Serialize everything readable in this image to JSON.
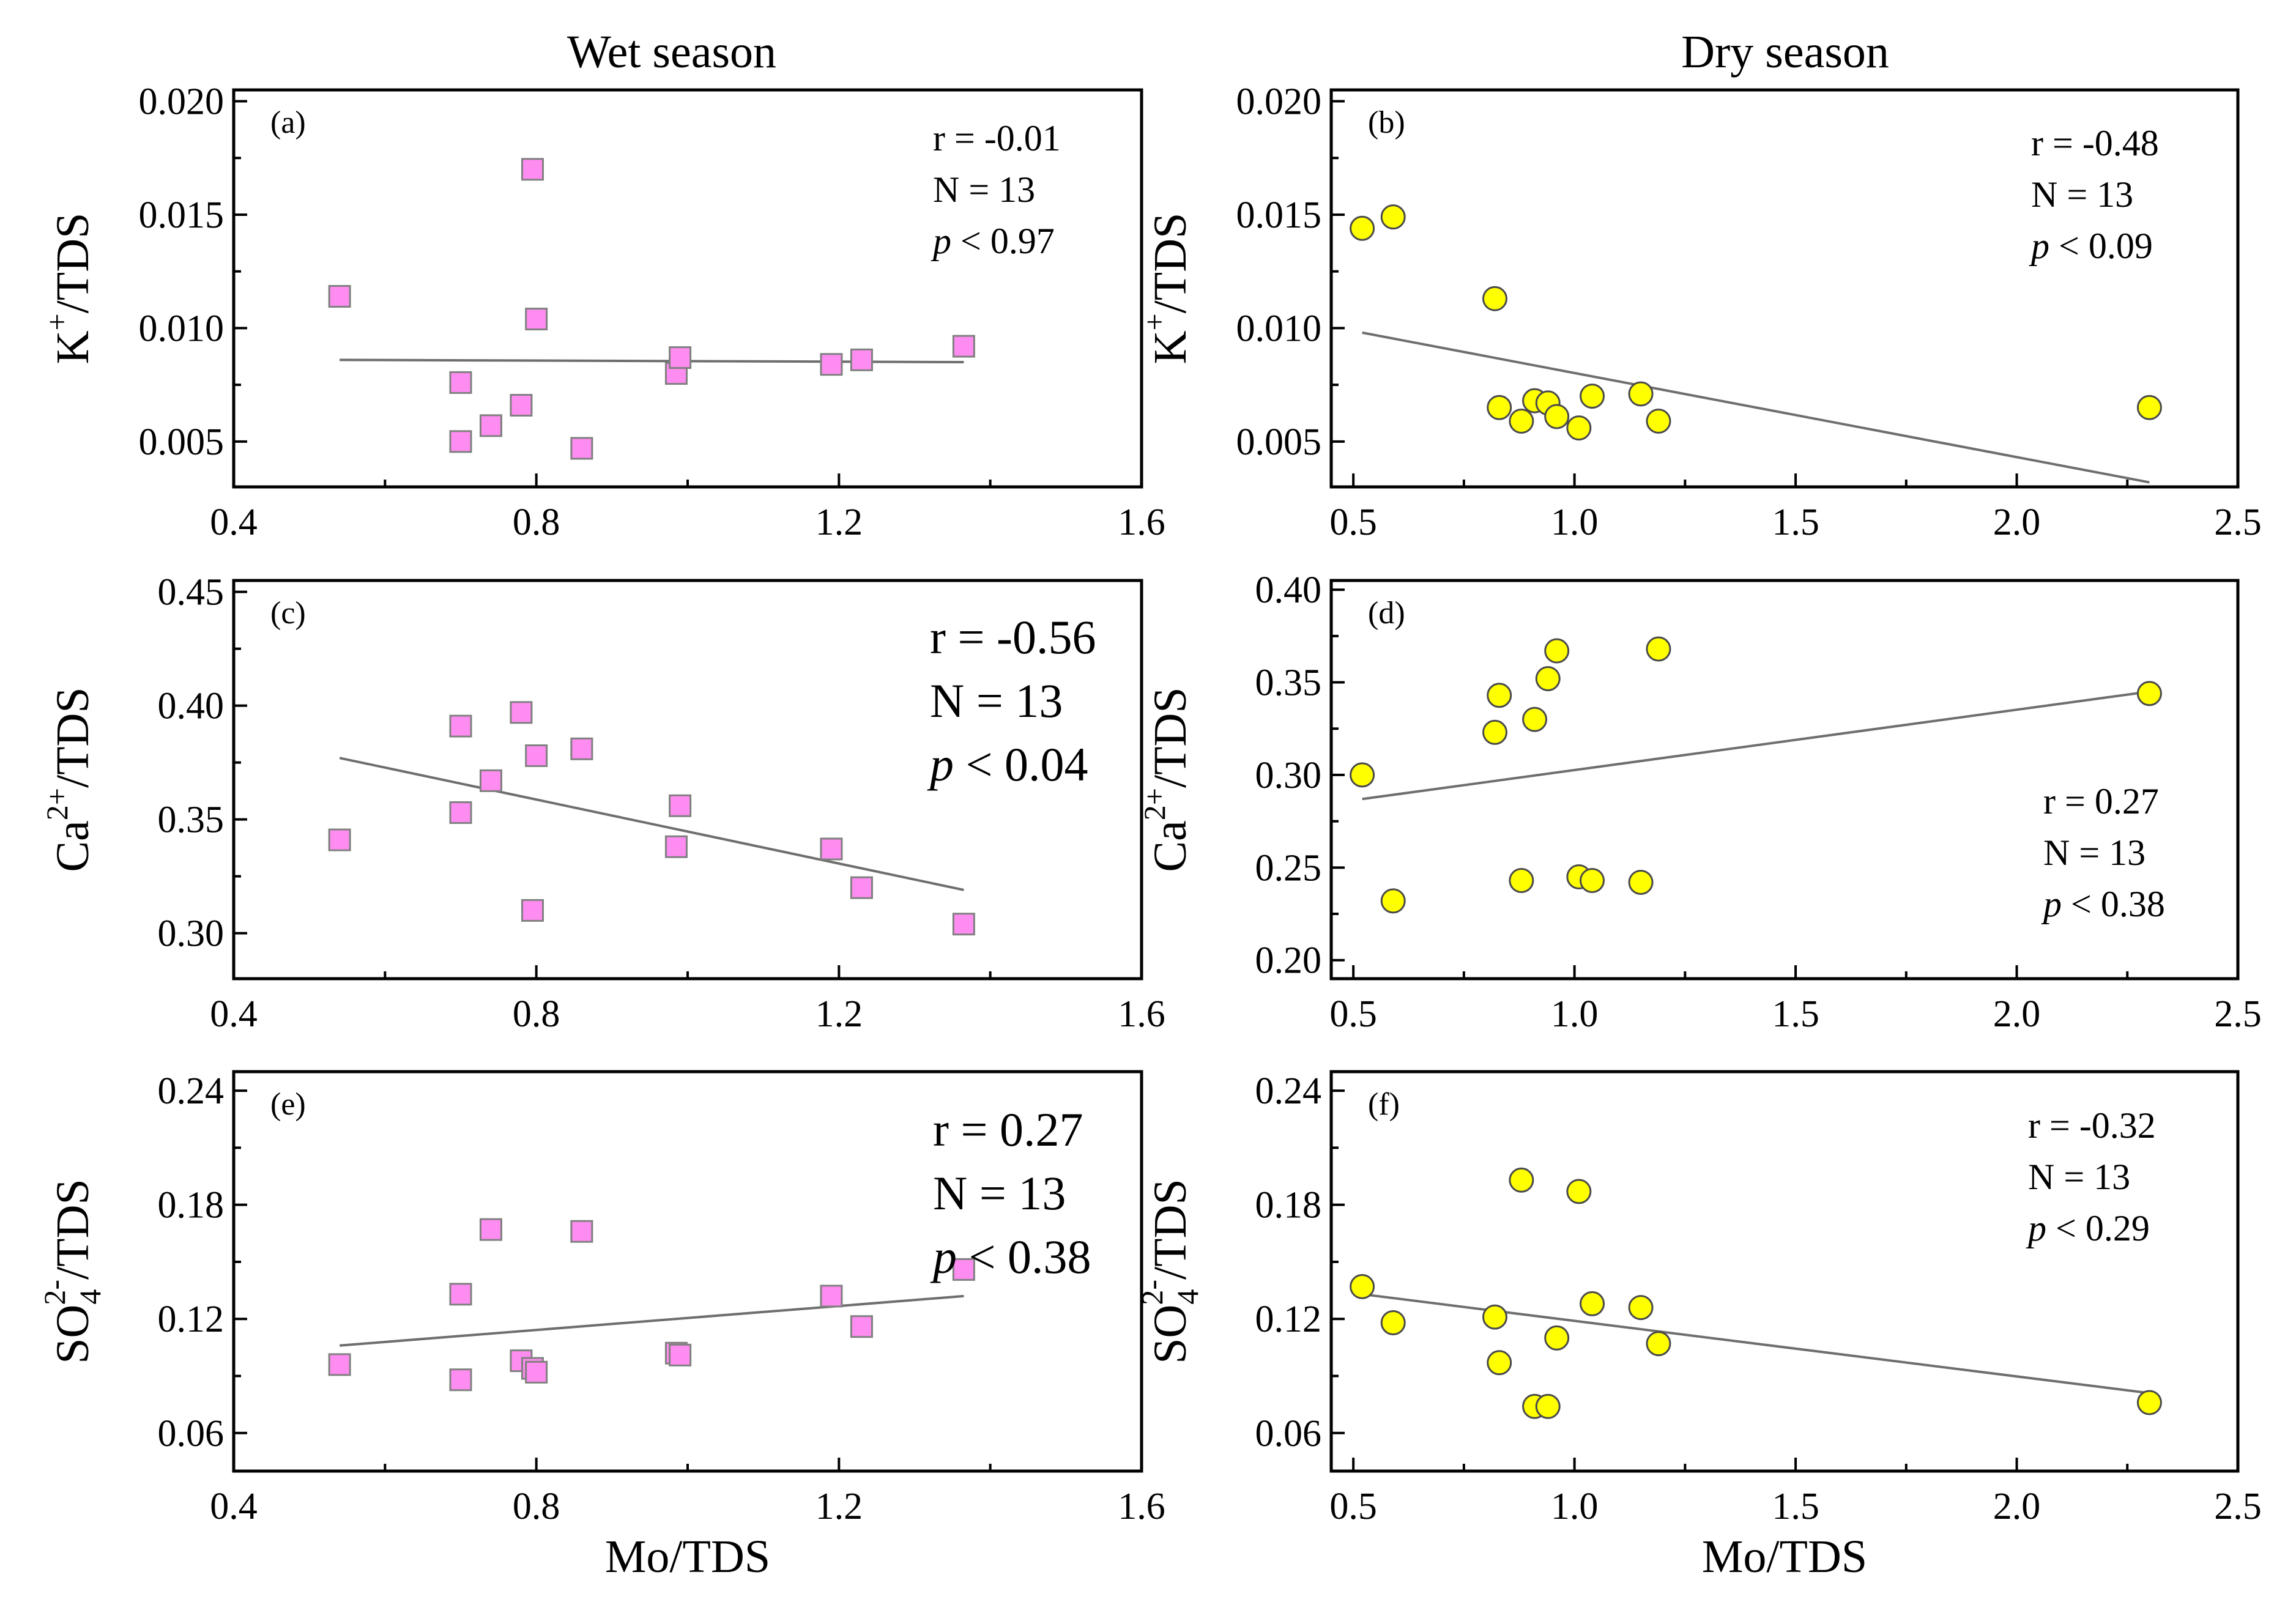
{
  "column_titles": {
    "wet": "Wet season",
    "dry": "Dry season"
  },
  "chart_data": [
    {
      "id": "a",
      "type": "scatter",
      "label": "(a)",
      "season": "wet",
      "ylabel": {
        "main": "K",
        "sup": "+",
        "sub": "",
        "rest": "/TDS"
      },
      "xlabel": "",
      "xlim": [
        0.4,
        1.6
      ],
      "ylim": [
        0.003,
        0.0205
      ],
      "xticks": [
        "0.4",
        "0.8",
        "1.2",
        "1.6"
      ],
      "yticks": [
        "0.005",
        "0.010",
        "0.015",
        "0.020"
      ],
      "marker": "square",
      "color": "#ff8cf0",
      "x": [
        0.54,
        0.7,
        0.7,
        0.74,
        0.78,
        0.795,
        0.8,
        0.86,
        0.985,
        0.99,
        1.19,
        1.23,
        1.365
      ],
      "y": [
        0.0114,
        0.0076,
        0.005,
        0.0057,
        0.0066,
        0.017,
        0.0104,
        0.0047,
        0.008,
        0.0087,
        0.0084,
        0.0086,
        0.0092
      ],
      "trend": {
        "x": [
          0.54,
          1.365
        ],
        "y": [
          0.0086,
          0.0085
        ]
      },
      "stats": {
        "r": "r = -0.01",
        "n": "N = 13",
        "p_symbol": "p",
        "p_rest": " < 0.97"
      },
      "stats_size": "small"
    },
    {
      "id": "b",
      "type": "scatter",
      "label": "(b)",
      "season": "dry",
      "ylabel": {
        "main": "K",
        "sup": "+",
        "sub": "",
        "rest": "/TDS"
      },
      "xlabel": "",
      "xlim": [
        0.45,
        2.5
      ],
      "ylim": [
        0.003,
        0.0205
      ],
      "xticks": [
        "0.5",
        "1.0",
        "1.5",
        "2.0",
        "2.5"
      ],
      "yticks": [
        "0.005",
        "0.010",
        "0.015",
        "0.020"
      ],
      "marker": "circle",
      "color": "#ffff00",
      "x": [
        0.52,
        0.59,
        0.82,
        0.83,
        0.88,
        0.91,
        0.94,
        0.96,
        1.01,
        1.04,
        1.15,
        1.19,
        2.3
      ],
      "y": [
        0.0144,
        0.0149,
        0.0113,
        0.0065,
        0.0059,
        0.0068,
        0.0067,
        0.0061,
        0.0056,
        0.007,
        0.0071,
        0.0059,
        0.0065
      ],
      "trend": {
        "x": [
          0.52,
          2.3
        ],
        "y": [
          0.0098,
          0.0032
        ]
      },
      "stats": {
        "r": "r = -0.48",
        "n": "N = 13",
        "p_symbol": "p",
        "p_rest": " < 0.09"
      },
      "stats_size": "small"
    },
    {
      "id": "c",
      "type": "scatter",
      "label": "(c)",
      "season": "wet",
      "ylabel": {
        "main": "Ca",
        "sup": "2+",
        "sub": "",
        "rest": "/TDS"
      },
      "xlabel": "",
      "xlim": [
        0.4,
        1.6
      ],
      "ylim": [
        0.28,
        0.455
      ],
      "xticks": [
        "0.4",
        "0.8",
        "1.2",
        "1.6"
      ],
      "yticks": [
        "0.30",
        "0.35",
        "0.40",
        "0.45"
      ],
      "marker": "square",
      "color": "#ff8cf0",
      "x": [
        0.54,
        0.7,
        0.7,
        0.74,
        0.78,
        0.795,
        0.8,
        0.86,
        0.985,
        0.99,
        1.19,
        1.23,
        1.365
      ],
      "y": [
        0.341,
        0.391,
        0.353,
        0.367,
        0.397,
        0.31,
        0.378,
        0.381,
        0.338,
        0.356,
        0.337,
        0.32,
        0.304
      ],
      "trend": {
        "x": [
          0.54,
          1.365
        ],
        "y": [
          0.377,
          0.319
        ]
      },
      "stats": {
        "r": "r = -0.56",
        "n": "N = 13",
        "p_symbol": "p",
        "p_rest": " < 0.04"
      },
      "stats_size": "large"
    },
    {
      "id": "d",
      "type": "scatter",
      "label": "(d)",
      "season": "dry",
      "ylabel": {
        "main": "Ca",
        "sup": "2+",
        "sub": "",
        "rest": "/TDS"
      },
      "xlabel": "",
      "xlim": [
        0.45,
        2.5
      ],
      "ylim": [
        0.19,
        0.405
      ],
      "xticks": [
        "0.5",
        "1.0",
        "1.5",
        "2.0",
        "2.5"
      ],
      "yticks": [
        "0.20",
        "0.25",
        "0.30",
        "0.35",
        "0.40"
      ],
      "marker": "circle",
      "color": "#ffff00",
      "x": [
        0.52,
        0.59,
        0.82,
        0.83,
        0.88,
        0.91,
        0.94,
        0.96,
        1.01,
        1.04,
        1.15,
        1.19,
        2.3
      ],
      "y": [
        0.3,
        0.232,
        0.323,
        0.343,
        0.243,
        0.33,
        0.352,
        0.367,
        0.245,
        0.243,
        0.242,
        0.368,
        0.344
      ],
      "trend": {
        "x": [
          0.52,
          2.3
        ],
        "y": [
          0.287,
          0.345
        ]
      },
      "stats": {
        "r": "r = 0.27",
        "n": "N = 13",
        "p_symbol": "p",
        "p_rest": " < 0.38"
      },
      "stats_size": "small"
    },
    {
      "id": "e",
      "type": "scatter",
      "label": "(e)",
      "season": "wet",
      "ylabel": {
        "main": "SO",
        "sup": "2-",
        "sub": "4",
        "rest": "/TDS"
      },
      "xlabel": "Mo/TDS",
      "xlim": [
        0.4,
        1.6
      ],
      "ylim": [
        0.04,
        0.25
      ],
      "xticks": [
        "0.4",
        "0.8",
        "1.2",
        "1.6"
      ],
      "yticks": [
        "0.06",
        "0.12",
        "0.18",
        "0.24"
      ],
      "marker": "square",
      "color": "#ff8cf0",
      "x": [
        0.54,
        0.7,
        0.7,
        0.74,
        0.78,
        0.795,
        0.8,
        0.86,
        0.985,
        0.99,
        1.19,
        1.23,
        1.365
      ],
      "y": [
        0.096,
        0.133,
        0.088,
        0.167,
        0.098,
        0.094,
        0.092,
        0.166,
        0.102,
        0.101,
        0.132,
        0.116,
        0.146
      ],
      "trend": {
        "x": [
          0.54,
          1.365
        ],
        "y": [
          0.106,
          0.132
        ]
      },
      "stats": {
        "r": "r = 0.27",
        "n": "N = 13",
        "p_symbol": "p",
        "p_rest": " < 0.38"
      },
      "stats_size": "large"
    },
    {
      "id": "f",
      "type": "scatter",
      "label": "(f)",
      "season": "dry",
      "ylabel": {
        "main": "SO",
        "sup": "2-",
        "sub": "4",
        "rest": "/TDS"
      },
      "xlabel": "Mo/TDS",
      "xlim": [
        0.45,
        2.5
      ],
      "ylim": [
        0.04,
        0.25
      ],
      "xticks": [
        "0.5",
        "1.0",
        "1.5",
        "2.0",
        "2.5"
      ],
      "yticks": [
        "0.06",
        "0.12",
        "0.18",
        "0.24"
      ],
      "marker": "circle",
      "color": "#ffff00",
      "x": [
        0.52,
        0.59,
        0.82,
        0.83,
        0.88,
        0.91,
        0.94,
        0.96,
        1.01,
        1.04,
        1.15,
        1.19,
        2.3
      ],
      "y": [
        0.137,
        0.118,
        0.121,
        0.097,
        0.193,
        0.074,
        0.074,
        0.11,
        0.187,
        0.128,
        0.126,
        0.107,
        0.076
      ],
      "trend": {
        "x": [
          0.52,
          2.3
        ],
        "y": [
          0.133,
          0.081
        ]
      },
      "stats": {
        "r": "r = -0.32",
        "n": "N = 13",
        "p_symbol": "p",
        "p_rest": " < 0.29"
      },
      "stats_size": "small"
    }
  ]
}
